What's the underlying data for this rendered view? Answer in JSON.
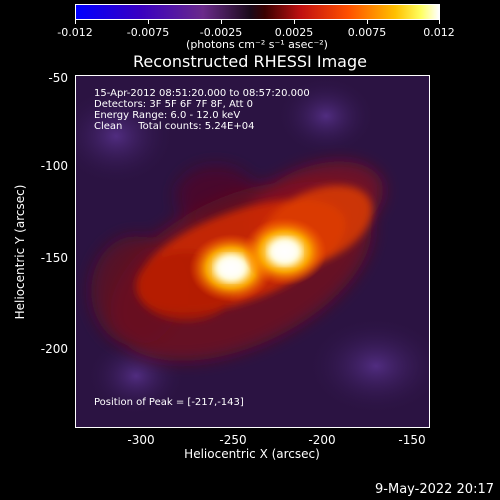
{
  "colorbar": {
    "tick_labels": [
      "-0.012",
      "-0.0075",
      "-0.0025",
      "0.0025",
      "0.0075",
      "0.012"
    ],
    "unit_label": "(photons cm⁻² s⁻¹ asec⁻²)",
    "min": -0.012,
    "max": 0.012
  },
  "title": "Reconstructed RHESSI Image",
  "info": {
    "line1": "15-Apr-2012 08:51:20.000 to 08:57:20.000",
    "line2": "Detectors: 3F 5F 6F 7F 8F, Att 0",
    "line3": "Energy Range: 6.0 - 12.0 keV",
    "line4": "Clean     Total counts: 5.24E+04",
    "peak": "Position of Peak = [-217,-143]"
  },
  "axes": {
    "xlabel": "Heliocentric X (arcsec)",
    "ylabel": "Heliocentric Y (arcsec)",
    "xticks": [
      "-300",
      "-250",
      "-200",
      "-150"
    ],
    "yticks": [
      "-50",
      "-100",
      "-150",
      "-200"
    ],
    "xlim": [
      -334,
      -135
    ],
    "ylim": [
      -240,
      -47
    ]
  },
  "image": {
    "peak_position": [
      -217,
      -143
    ],
    "sources": [
      {
        "x": -247,
        "y": -152,
        "peak": 1.0
      },
      {
        "x": -217,
        "y": -143,
        "peak": 1.0
      }
    ]
  },
  "footer": {
    "timestamp": "9-May-2022 20:17"
  }
}
